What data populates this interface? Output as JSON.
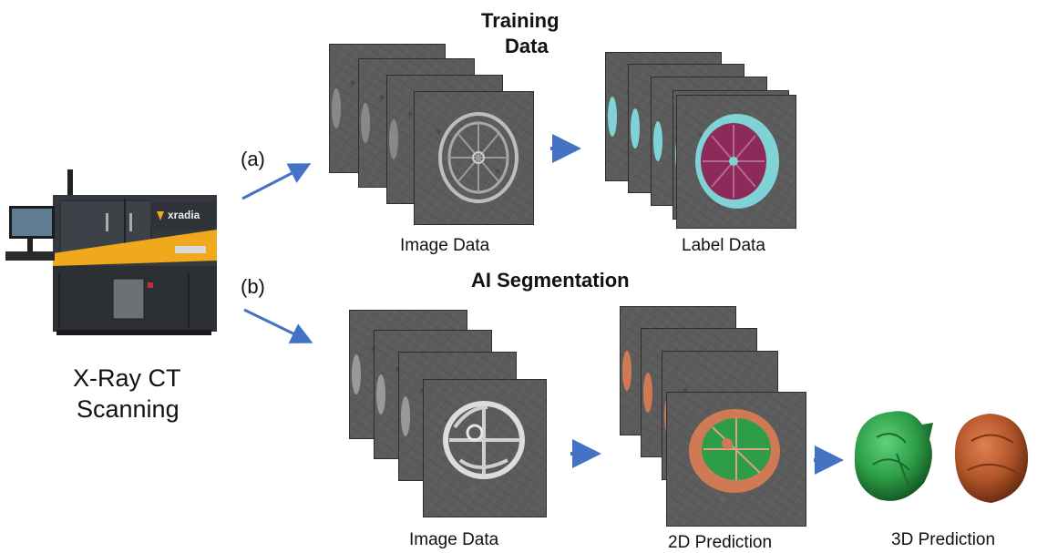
{
  "scanner": {
    "label_line1": "X-Ray CT",
    "label_line2": "Scanning",
    "brand": "xradia"
  },
  "path_a": {
    "marker": "(a)"
  },
  "path_b": {
    "marker": "(b)"
  },
  "training": {
    "title_line1": "Training",
    "title_line2": "Data",
    "image_label": "Image Data",
    "label_label": "Label Data"
  },
  "segmentation": {
    "title": "AI Segmentation",
    "image_label": "Image Data",
    "pred2d_label": "2D Prediction",
    "pred3d_label": "3D Prediction"
  },
  "colors": {
    "arrow": "#4472c4",
    "label_cyan": "#7fd3d6",
    "label_magenta": "#8e2a5a",
    "pred_green": "#2e9d48",
    "pred_orange": "#d07a55",
    "machine_body": "#34383e",
    "machine_stripe": "#f0a81c"
  }
}
